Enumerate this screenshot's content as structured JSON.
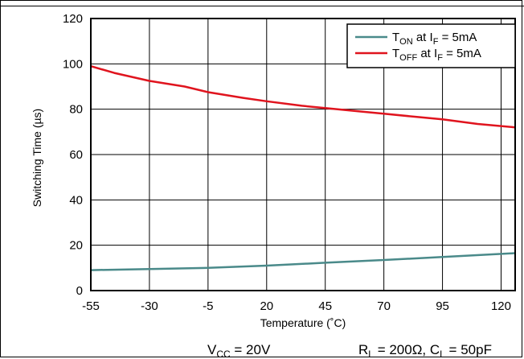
{
  "chart_data": {
    "type": "line",
    "xlabel": "Temperature (˚C)",
    "ylabel": "Switching Time (µs)",
    "x_ticks": [
      "-55",
      "-30",
      "-5",
      "20",
      "45",
      "70",
      "95",
      "120"
    ],
    "y_ticks": [
      "0",
      "20",
      "40",
      "60",
      "80",
      "100",
      "120"
    ],
    "xlim": [
      -55,
      126
    ],
    "ylim": [
      0,
      120
    ],
    "grid": true,
    "legend_position": "top-right",
    "series": [
      {
        "name_main": "T",
        "name_sub": "ON",
        "name_rest": " at I",
        "name_sub2": "F",
        "name_end": " = 5mA",
        "color": "#4a8a8a",
        "x": [
          -55,
          -30,
          -5,
          20,
          45,
          70,
          95,
          126
        ],
        "y": [
          9,
          9.5,
          10,
          11,
          12.3,
          13.5,
          14.8,
          16.5
        ]
      },
      {
        "name_main": "T",
        "name_sub": "OFF",
        "name_rest": " at I",
        "name_sub2": "F",
        "name_end": " = 5mA",
        "color": "#e0141e",
        "x": [
          -55,
          -45,
          -30,
          -15,
          -5,
          10,
          20,
          35,
          45,
          60,
          70,
          85,
          95,
          110,
          126
        ],
        "y": [
          99,
          96,
          92.5,
          90,
          87.5,
          85,
          83.5,
          81.5,
          80.5,
          79,
          78,
          76.5,
          75.5,
          73.5,
          72
        ]
      }
    ],
    "conditions": {
      "vcc_main": "V",
      "vcc_sub": "CC",
      "vcc_rest": " = 20V",
      "rl_main": "R",
      "rl_sub": "L",
      "rl_rest": " = 200Ω, C",
      "cl_sub": "L",
      "cl_rest": " = 50pF"
    }
  }
}
